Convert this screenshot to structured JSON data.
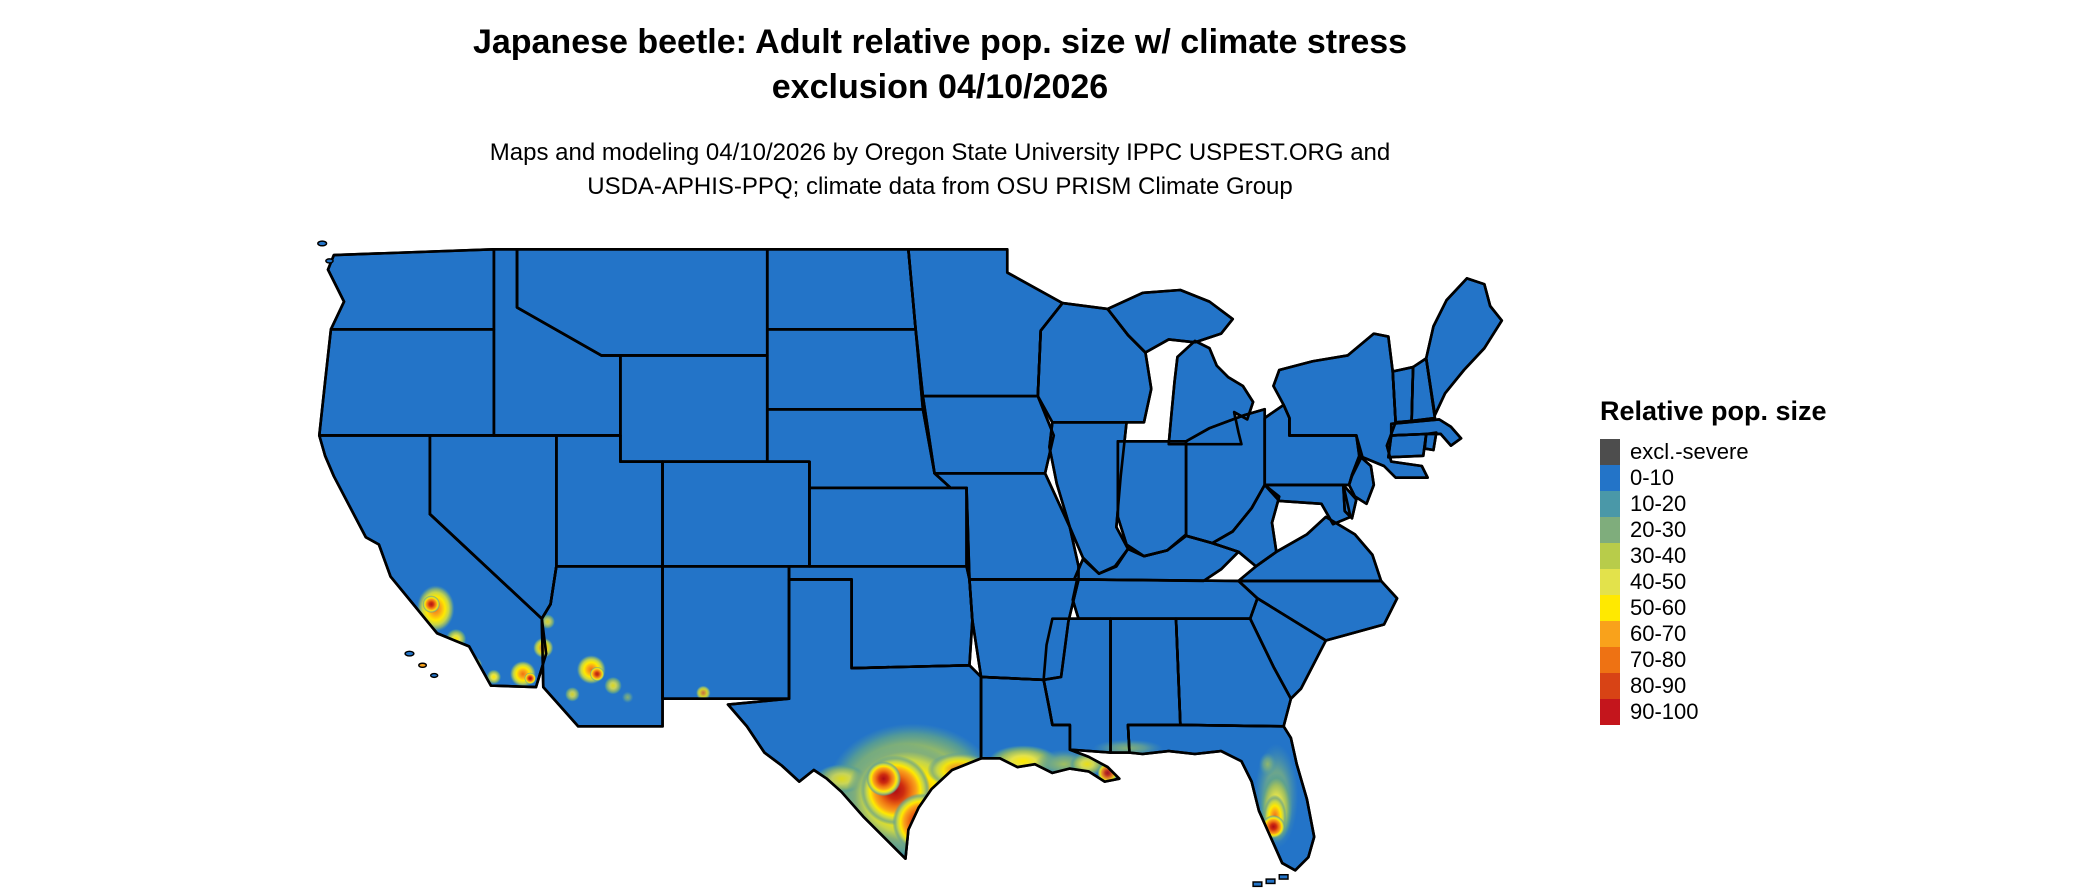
{
  "title": {
    "line1": "Japanese beetle: Adult relative pop. size w/ climate stress",
    "line2": "exclusion 04/10/2026"
  },
  "subtitle": {
    "line1": "Maps and modeling 04/10/2026 by Oregon State University IPPC USPEST.ORG and",
    "line2": "USDA-APHIS-PPQ; climate data from OSU PRISM Climate Group"
  },
  "legend": {
    "title": "Relative pop. size",
    "items": [
      {
        "label": "excl.-severe",
        "color": "#4D4D4D"
      },
      {
        "label": "0-10",
        "color": "#2374C8"
      },
      {
        "label": "10-20",
        "color": "#4A98A8"
      },
      {
        "label": "20-30",
        "color": "#7FAD7C"
      },
      {
        "label": "30-40",
        "color": "#B8CC4A"
      },
      {
        "label": "40-50",
        "color": "#E3E24B"
      },
      {
        "label": "50-60",
        "color": "#FFE900"
      },
      {
        "label": "60-70",
        "color": "#F9A21B"
      },
      {
        "label": "70-80",
        "color": "#EE7213"
      },
      {
        "label": "80-90",
        "color": "#D84315"
      },
      {
        "label": "90-100",
        "color": "#C4151C"
      }
    ]
  },
  "map": {
    "region": "Contiguous United States",
    "base_color": "#2374C8",
    "border_color": "#000000",
    "visible_hotspots": [
      "southern California",
      "southwestern Arizona",
      "southern and coastal Texas",
      "Louisiana Gulf Coast",
      "central Florida peninsula"
    ]
  }
}
